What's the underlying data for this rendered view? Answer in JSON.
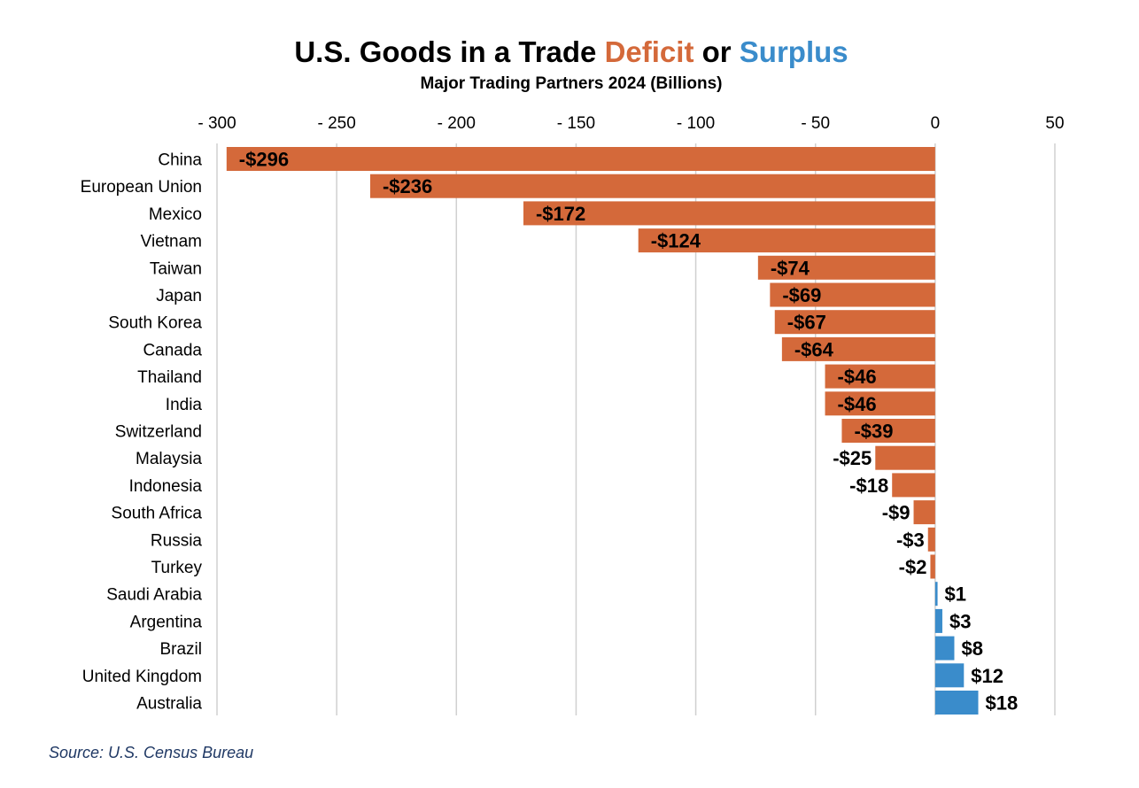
{
  "title": {
    "part1": "U.S. Goods in a Trade ",
    "deficit_word": "Deficit",
    "part2": " or ",
    "surplus_word": "Surplus"
  },
  "subtitle": "Major Trading Partners 2024 (Billions)",
  "source": "Source: U.S. Census Bureau",
  "colors": {
    "deficit": "#d4693a",
    "surplus": "#3a8ccb",
    "grid": "#d0d0d0"
  },
  "chart_data": {
    "type": "bar",
    "orientation": "horizontal",
    "title": "U.S. Goods in a Trade Deficit or Surplus",
    "subtitle": "Major Trading Partners 2024 (Billions)",
    "xlim": [
      -300,
      50
    ],
    "x_ticks": [
      -300,
      -250,
      -200,
      -150,
      -100,
      -50,
      0,
      50
    ],
    "x_tick_labels": [
      "- 300",
      "- 250",
      "- 200",
      "- 150",
      "- 100",
      "- 50",
      "0",
      "50"
    ],
    "x_axis_position": "top",
    "grid": true,
    "categories": [
      "China",
      "European Union",
      "Mexico",
      "Vietnam",
      "Taiwan",
      "Japan",
      "South Korea",
      "Canada",
      "Thailand",
      "India",
      "Switzerland",
      "Malaysia",
      "Indonesia",
      "South Africa",
      "Russia",
      "Turkey",
      "Saudi Arabia",
      "Argentina",
      "Brazil",
      "United Kingdom",
      "Australia"
    ],
    "values": [
      -296,
      -236,
      -172,
      -124,
      -74,
      -69,
      -67,
      -64,
      -46,
      -46,
      -39,
      -25,
      -18,
      -9,
      -3,
      -2,
      1,
      3,
      8,
      12,
      18
    ],
    "data_labels": [
      "-$296",
      "-$236",
      "-$172",
      "-$124",
      "-$74",
      "-$69",
      "-$67",
      "-$64",
      "-$46",
      "-$46",
      "-$39",
      "-$25",
      "-$18",
      "-$9",
      "-$3",
      "-$2",
      "$1",
      "$3",
      "$8",
      "$12",
      "$18"
    ]
  }
}
